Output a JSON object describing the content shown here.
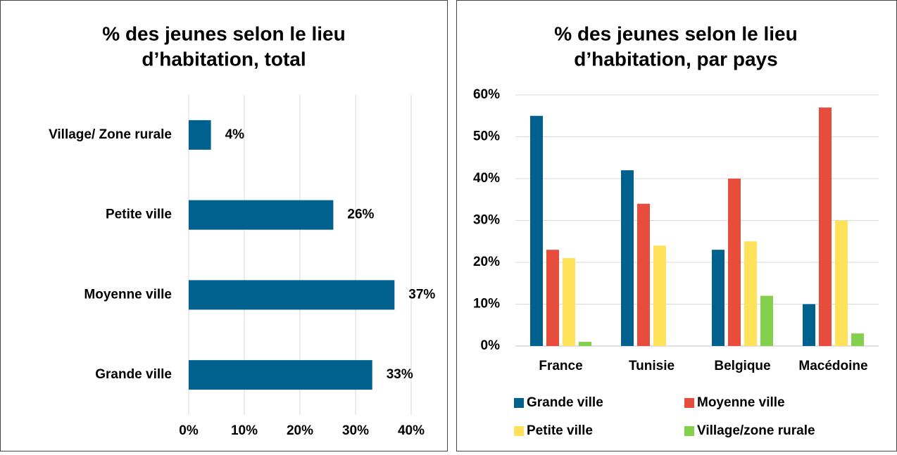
{
  "chart_data": [
    {
      "type": "hbar",
      "title": [
        "% des jeunes selon le lieu",
        "d’habitation, total"
      ],
      "categories": [
        "Village/ Zone rurale",
        "Petite ville",
        "Moyenne ville",
        "Grande ville"
      ],
      "values": [
        4,
        26,
        37,
        33
      ],
      "value_labels": [
        "4%",
        "26%",
        "37%",
        "33%"
      ],
      "color": "#00618f",
      "xlim": [
        0,
        40
      ],
      "xticks": [
        {
          "value": 0,
          "label": "0%"
        },
        {
          "value": 10,
          "label": "10%"
        },
        {
          "value": 20,
          "label": "20%"
        },
        {
          "value": 30,
          "label": "30%"
        },
        {
          "value": 40,
          "label": "40%"
        }
      ],
      "grid": true
    },
    {
      "type": "grouped_bar",
      "title": [
        "% des jeunes selon le lieu",
        "d’habitation, par pays"
      ],
      "categories": [
        "France",
        "Tunisie",
        "Belgique",
        "Macédoine"
      ],
      "series": [
        {
          "name": "Grande ville",
          "color": "#00618f",
          "values": [
            55,
            42,
            23,
            10
          ]
        },
        {
          "name": "Moyenne ville",
          "color": "#e84c3d",
          "values": [
            23,
            34,
            40,
            57
          ]
        },
        {
          "name": "Petite ville",
          "color": "#ffe15a",
          "values": [
            21,
            24,
            25,
            30
          ]
        },
        {
          "name": "Village/zone rurale",
          "color": "#84d04e",
          "values": [
            1,
            0,
            12,
            3
          ]
        }
      ],
      "ylim": [
        0,
        60
      ],
      "yticks": [
        {
          "value": 0,
          "label": "0%"
        },
        {
          "value": 10,
          "label": "10%"
        },
        {
          "value": 20,
          "label": "20%"
        },
        {
          "value": 30,
          "label": "30%"
        },
        {
          "value": 40,
          "label": "40%"
        },
        {
          "value": 50,
          "label": "50%"
        },
        {
          "value": 60,
          "label": "60%"
        }
      ],
      "grid": true,
      "legend": "bottom"
    }
  ]
}
